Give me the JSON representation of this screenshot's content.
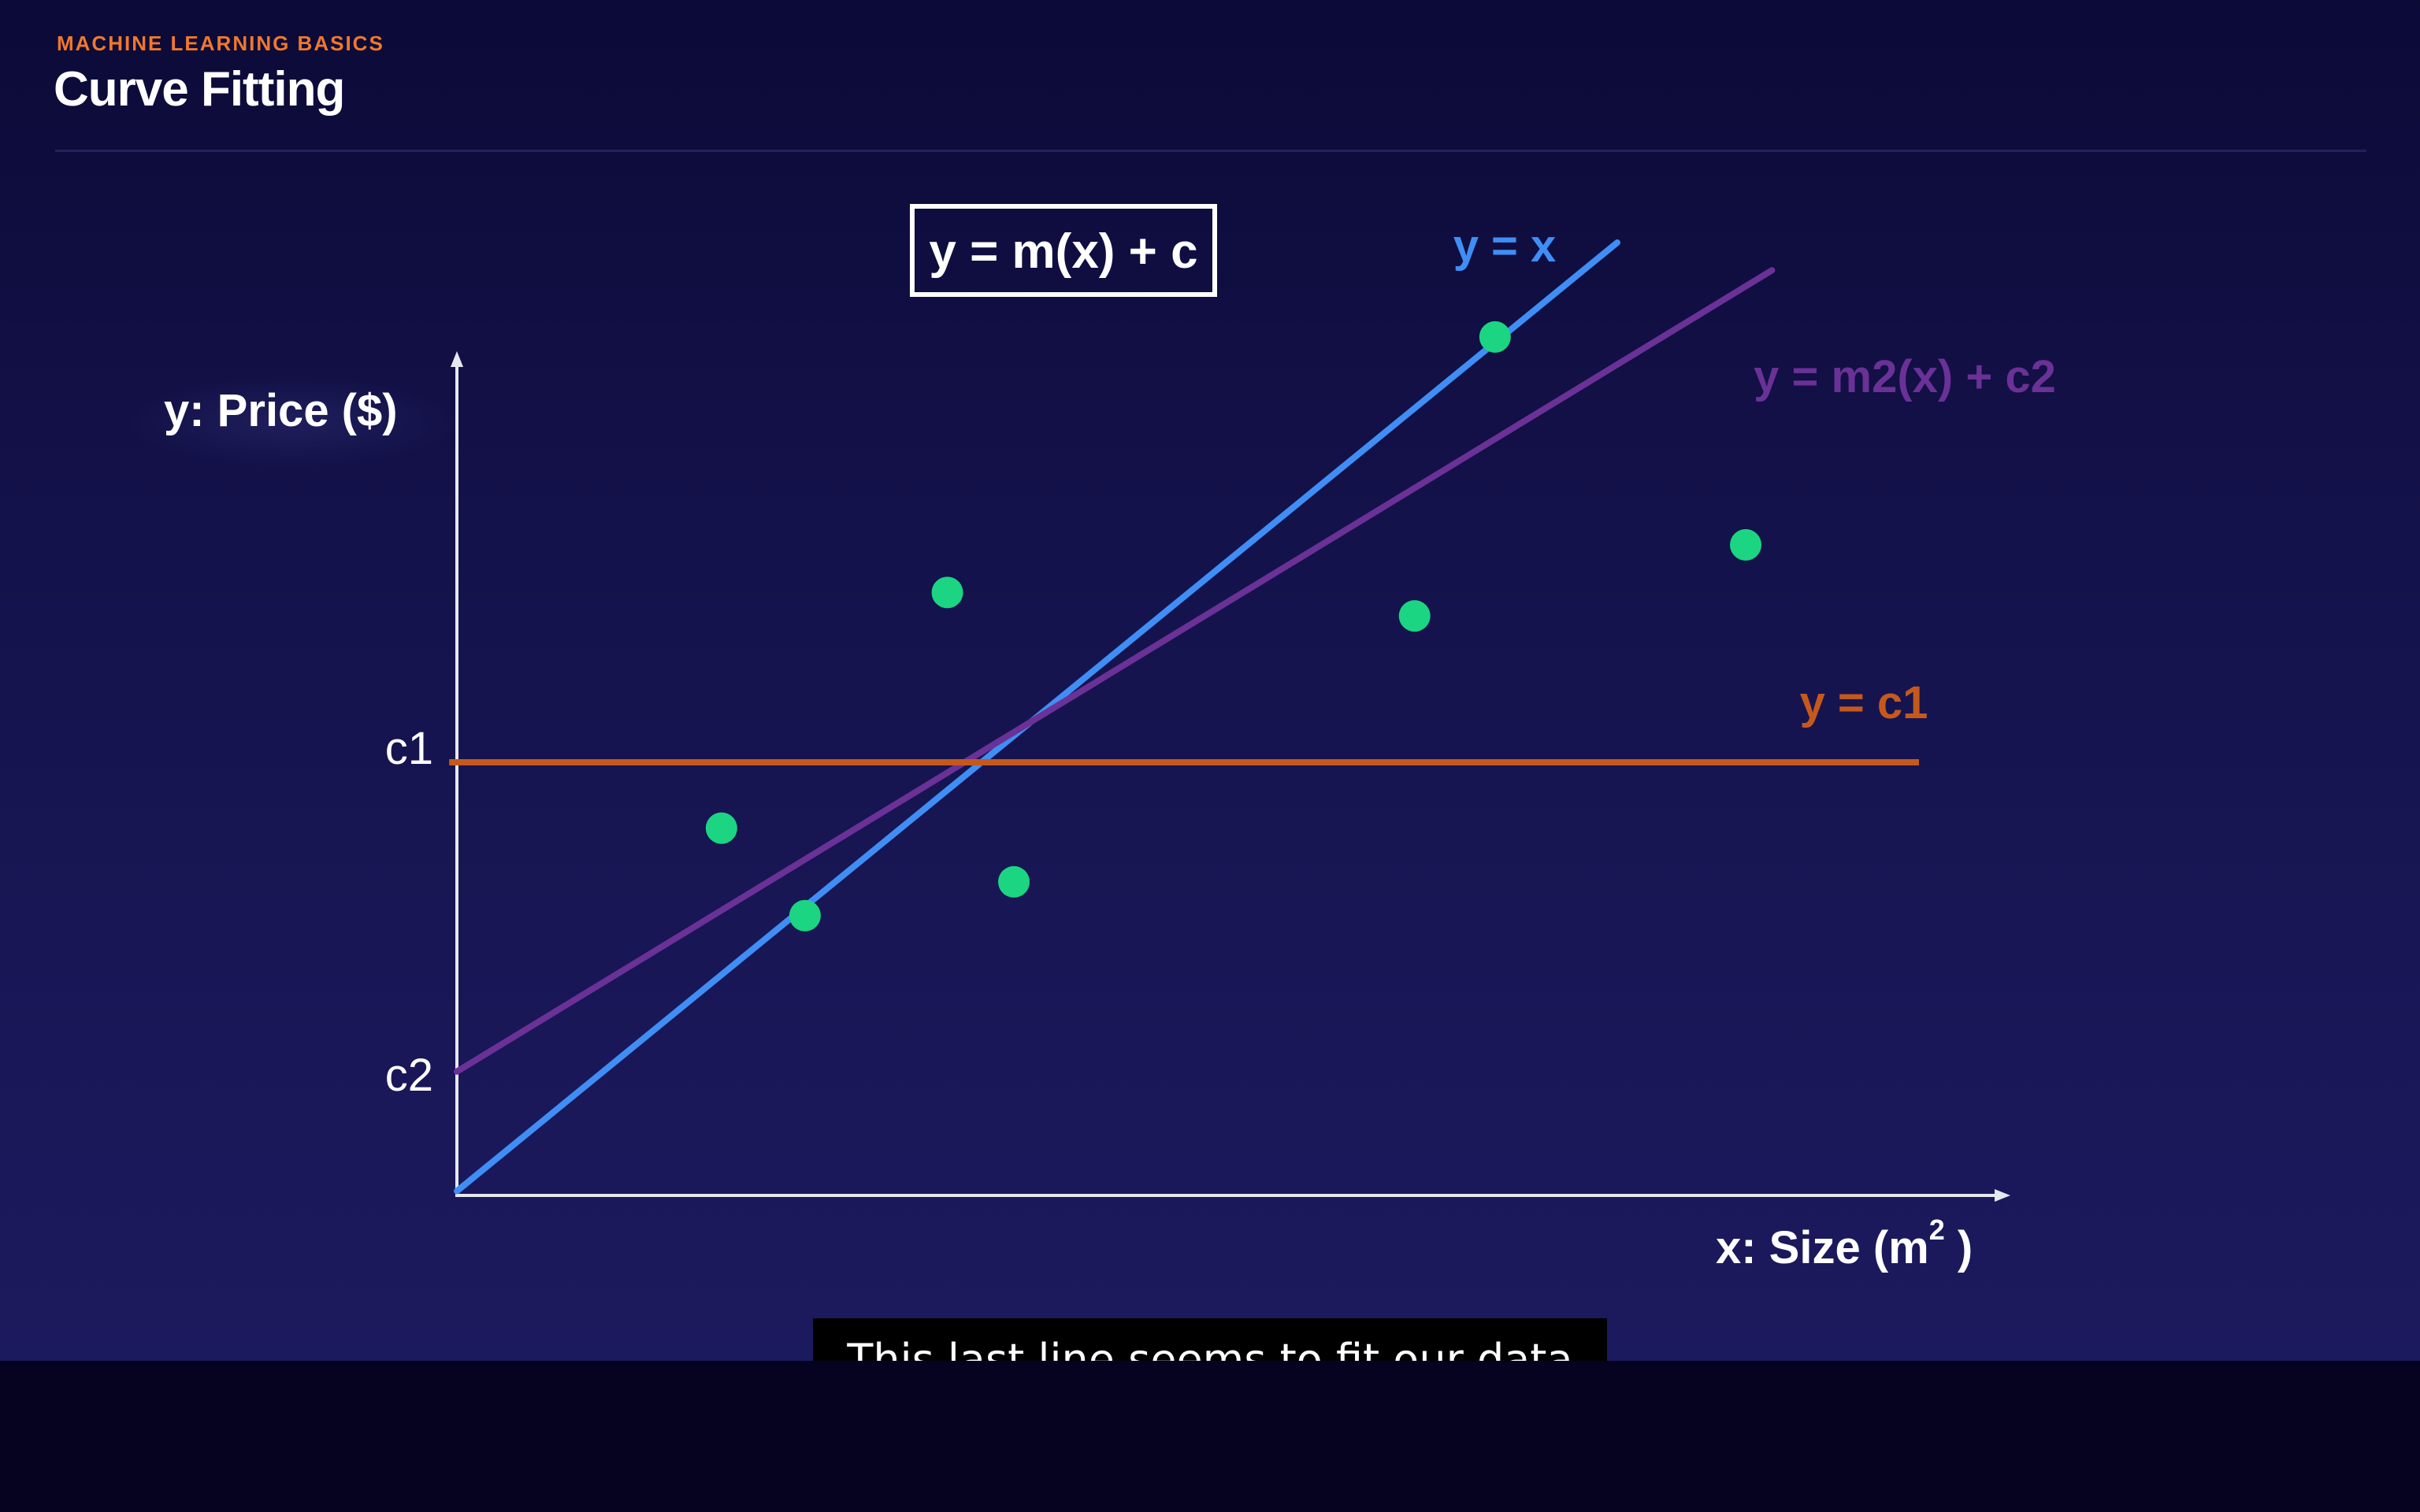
{
  "header": {
    "eyebrow": "MACHINE LEARNING BASICS",
    "title": "Curve Fitting"
  },
  "caption": "This last line seems to fit our data",
  "chart_data": {
    "type": "scatter",
    "formula_box": "y = m(x) + c",
    "xlabel": "x: Size (m",
    "xlabel_sup": "2",
    "xlabel_close": " )",
    "ylabel": "y: Price ($)",
    "y_ticks": [
      {
        "label": "c1",
        "value": 5.0
      },
      {
        "label": "c2",
        "value": 1.4
      }
    ],
    "xlim": [
      0,
      10
    ],
    "ylim": [
      0,
      10
    ],
    "grid": false,
    "points": [
      {
        "x": 1.71,
        "y": 4.24
      },
      {
        "x": 2.25,
        "y": 3.23
      },
      {
        "x": 3.17,
        "y": 6.96
      },
      {
        "x": 3.6,
        "y": 3.62
      },
      {
        "x": 6.19,
        "y": 6.69
      },
      {
        "x": 6.71,
        "y": 9.91
      },
      {
        "x": 8.33,
        "y": 7.51
      }
    ],
    "lines": [
      {
        "name": "y = x",
        "color": "#3f8ef5",
        "x0": 0.0,
        "y0": 0.05,
        "x1": 7.5,
        "y1": 11.0
      },
      {
        "name": "y = m2(x) + c2",
        "color": "#6a3196",
        "x0": 0.0,
        "y0": 1.43,
        "x1": 8.5,
        "y1": 10.68
      },
      {
        "name": "y = c1",
        "color": "#c5591c",
        "x0": -0.05,
        "y0": 5.0,
        "x1": 9.45,
        "y1": 5.0
      }
    ],
    "colors": {
      "points": "#1bd582",
      "axes": "#e6e8f0"
    }
  }
}
